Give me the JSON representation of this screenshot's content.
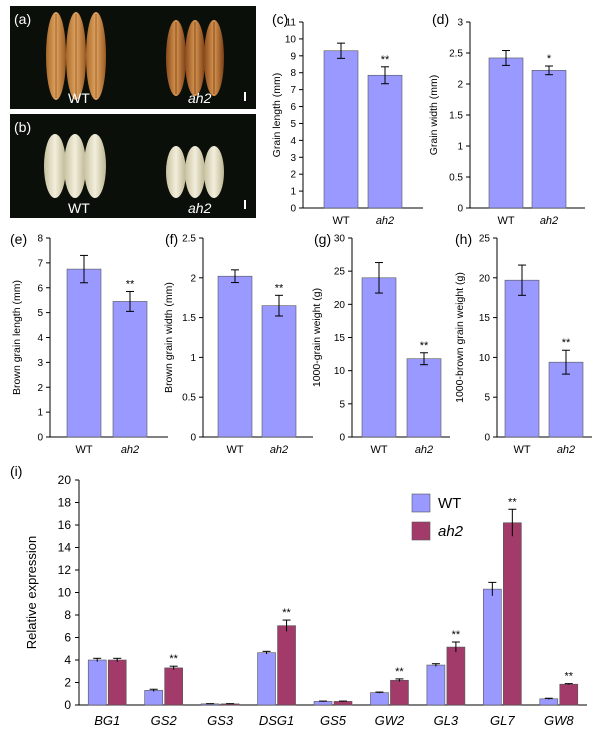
{
  "photos": [
    {
      "label": "(a)",
      "wt": "WT",
      "mut": "ah2"
    },
    {
      "label": "(b)",
      "wt": "WT",
      "mut": "ah2"
    }
  ],
  "colors": {
    "wt": "#9999ff",
    "ah2": "#a23b6a",
    "photo_bg": "#0a0f0a"
  },
  "chart_data": [
    {
      "panel": "(c)",
      "type": "bar",
      "categories": [
        "WT",
        "ah2"
      ],
      "values": [
        9.3,
        7.85
      ],
      "errors": [
        0.45,
        0.5
      ],
      "significance": [
        "",
        "**"
      ],
      "ylabel": "Grain length (mm)",
      "ylim": [
        0,
        11
      ],
      "yticks": [
        0,
        1,
        2,
        3,
        4,
        5,
        6,
        7,
        8,
        9,
        10,
        11
      ]
    },
    {
      "panel": "(d)",
      "type": "bar",
      "categories": [
        "WT",
        "ah2"
      ],
      "values": [
        2.42,
        2.22
      ],
      "errors": [
        0.12,
        0.07
      ],
      "significance": [
        "",
        "*"
      ],
      "ylabel": "Grain width (mm)",
      "ylim": [
        0,
        3
      ],
      "yticks": [
        0,
        0.5,
        1,
        1.5,
        2,
        2.5,
        3
      ]
    },
    {
      "panel": "(e)",
      "type": "bar",
      "categories": [
        "WT",
        "ah2"
      ],
      "values": [
        6.75,
        5.45
      ],
      "errors": [
        0.55,
        0.4
      ],
      "significance": [
        "",
        "**"
      ],
      "ylabel": "Brown grain length (mm)",
      "ylim": [
        0,
        8
      ],
      "yticks": [
        0,
        1,
        2,
        3,
        4,
        5,
        6,
        7,
        8
      ]
    },
    {
      "panel": "(f)",
      "type": "bar",
      "categories": [
        "WT",
        "ah2"
      ],
      "values": [
        2.02,
        1.65
      ],
      "errors": [
        0.08,
        0.13
      ],
      "significance": [
        "",
        "**"
      ],
      "ylabel": "Brown grain width (mm)",
      "ylim": [
        0,
        2.5
      ],
      "yticks": [
        0,
        0.5,
        1,
        1.5,
        2,
        2.5
      ]
    },
    {
      "panel": "(g)",
      "type": "bar",
      "categories": [
        "WT",
        "ah2"
      ],
      "values": [
        24.0,
        11.8
      ],
      "errors": [
        2.3,
        0.9
      ],
      "significance": [
        "",
        "**"
      ],
      "ylabel": "1000-grain weight (g)",
      "ylim": [
        0,
        30
      ],
      "yticks": [
        0,
        5,
        10,
        15,
        20,
        25,
        30
      ]
    },
    {
      "panel": "(h)",
      "type": "bar",
      "categories": [
        "WT",
        "ah2"
      ],
      "values": [
        19.7,
        9.4
      ],
      "errors": [
        1.9,
        1.5
      ],
      "significance": [
        "",
        "**"
      ],
      "ylabel": "1000-brown grain weight (g)",
      "ylim": [
        0,
        25
      ],
      "yticks": [
        0,
        5,
        10,
        15,
        20,
        25
      ]
    },
    {
      "panel": "(i)",
      "type": "bar",
      "categories": [
        "BG1",
        "GS2",
        "GS3",
        "DSG1",
        "GS5",
        "GW2",
        "GL3",
        "GL7",
        "GW8"
      ],
      "series": [
        {
          "name": "WT",
          "values": [
            4.0,
            1.3,
            0.1,
            4.65,
            0.32,
            1.1,
            3.55,
            10.3,
            0.55
          ],
          "errors": [
            0.15,
            0.1,
            0.02,
            0.12,
            0.03,
            0.05,
            0.12,
            0.6,
            0.05
          ]
        },
        {
          "name": "ah2",
          "values": [
            4.0,
            3.3,
            0.1,
            7.05,
            0.32,
            2.2,
            5.15,
            16.2,
            1.85
          ],
          "errors": [
            0.15,
            0.15,
            0.02,
            0.5,
            0.03,
            0.12,
            0.45,
            1.2,
            0.05
          ]
        }
      ],
      "significance": [
        "",
        "**",
        "",
        "**",
        "",
        "**",
        "**",
        "**",
        "**"
      ],
      "ylabel": "Relative expression",
      "ylim": [
        0,
        20
      ],
      "yticks": [
        0,
        2,
        4,
        6,
        8,
        10,
        12,
        14,
        16,
        18,
        20
      ],
      "legend": "top-right"
    }
  ]
}
